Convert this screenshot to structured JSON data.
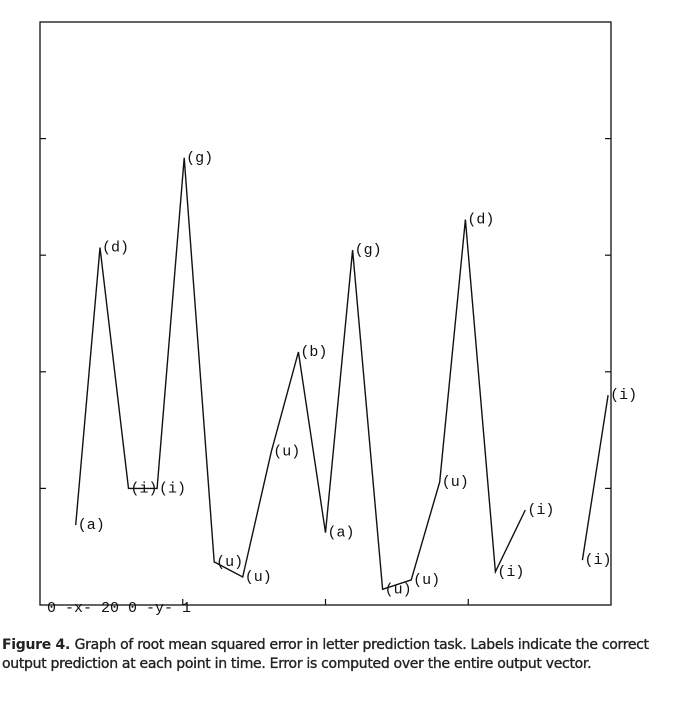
{
  "chart_data": {
    "type": "line",
    "axis_note": "0 -x- 20  0 -y- 1",
    "x": [
      1.25,
      2.1,
      3.1,
      4.1,
      5.05,
      6.1,
      7.1,
      8.1,
      9.05,
      10,
      10.95,
      12,
      13,
      14,
      14.9,
      15.95,
      17,
      18,
      19,
      19.9
    ],
    "values": [
      0.137,
      0.613,
      0.2,
      0.2,
      0.767,
      0.074,
      0.048,
      0.263,
      0.434,
      0.124,
      0.609,
      0.027,
      0.043,
      0.211,
      0.661,
      0.057,
      0.163,
      null,
      0.077,
      0.36
    ],
    "point_labels": [
      "(a)",
      "(d)",
      "(i)",
      "(i)",
      "(g)",
      "(u)",
      "(u)",
      "(u)",
      "(b)",
      "(a)",
      "(g)",
      "(u)",
      "(u)",
      "(u)",
      "(d)",
      "(i)",
      "(i)",
      null,
      "(i)",
      "(i)"
    ],
    "color": "#111111",
    "xlim": [
      0,
      20
    ],
    "ylim": [
      0,
      1
    ],
    "xticks": [
      5,
      10,
      15
    ],
    "yticks": [
      0.2,
      0.4,
      0.6,
      0.8
    ]
  },
  "caption": {
    "label": "Figure 4.",
    "text": "Graph of root mean squared error in letter prediction task. Labels indicate the correct output prediction at each point in time. Error is computed over the entire output vector."
  }
}
